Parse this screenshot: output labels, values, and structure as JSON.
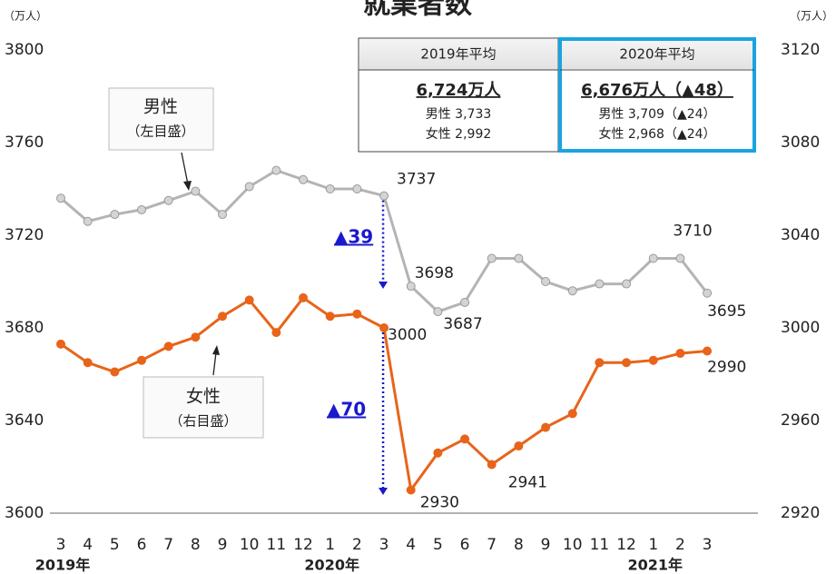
{
  "chart_data": {
    "type": "line",
    "title": "就業者数",
    "y_unit": "（万人）",
    "y2_unit": "（万人）",
    "categories": [
      "3",
      "4",
      "5",
      "6",
      "7",
      "8",
      "9",
      "10",
      "11",
      "12",
      "1",
      "2",
      "3",
      "4",
      "5",
      "6",
      "7",
      "8",
      "9",
      "10",
      "11",
      "12",
      "1",
      "2",
      "3"
    ],
    "year_labels": [
      {
        "text": "2019年",
        "index": 0
      },
      {
        "text": "2020年",
        "index": 10
      },
      {
        "text": "2021年",
        "index": 22
      }
    ],
    "ylim": [
      3600,
      3800
    ],
    "yticks": [
      3600,
      3640,
      3680,
      3720,
      3760,
      3800
    ],
    "y2lim": [
      2920,
      3120
    ],
    "y2ticks": [
      2920,
      2960,
      3000,
      3040,
      3080,
      3120
    ],
    "series": [
      {
        "name": "男性",
        "axis_note": "（左目盛）",
        "color": "#b4b4b4",
        "marker_color": "#d4d4d4",
        "values": [
          3736,
          3726,
          3729,
          3731,
          3735,
          3739,
          3729,
          3741,
          3748,
          3744,
          3740,
          3740,
          3737,
          3698,
          3687,
          3691,
          3710,
          3710,
          3700,
          3696,
          3699,
          3699,
          3710,
          3710,
          3695
        ],
        "labels_at": [
          12,
          13,
          14,
          23,
          24
        ]
      },
      {
        "name": "女性",
        "axis_note": "（右目盛）",
        "color": "#e8641a",
        "marker_color": "#e8641a",
        "axis": "y2",
        "values": [
          2993,
          2985,
          2981,
          2986,
          2992,
          2996,
          3005,
          3012,
          2998,
          3013,
          3005,
          3006,
          3000,
          2930,
          2946,
          2952,
          2941,
          2949,
          2957,
          2963,
          2985,
          2985,
          2986,
          2989,
          2990
        ],
        "labels_at": [
          12,
          13,
          16,
          24
        ]
      }
    ],
    "drops": [
      {
        "text": "▲39",
        "series": 0
      },
      {
        "text": "▲70",
        "series": 1
      }
    ],
    "summary_table": {
      "headers": [
        "2019年平均",
        "2020年平均"
      ],
      "totals": [
        "6,724万人",
        "6,676万人（▲48）"
      ],
      "male": [
        "男性 3,733",
        "男性 3,709（▲24）"
      ],
      "female": [
        "女性 2,992",
        "女性 2,968（▲24）"
      ]
    }
  }
}
